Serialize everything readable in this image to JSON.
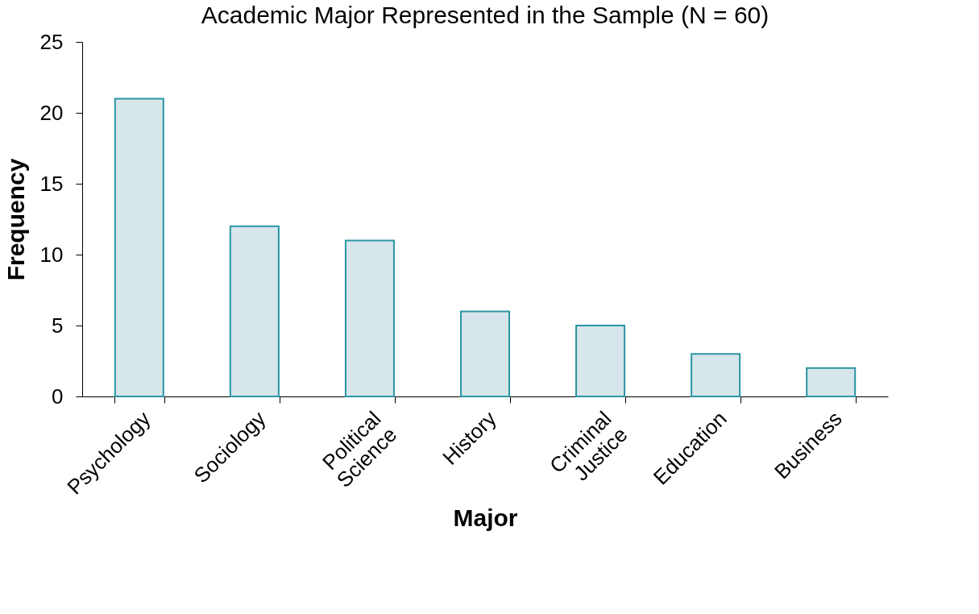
{
  "chart_data": {
    "type": "bar",
    "title": "Academic Major Represented in the Sample (N = 60)",
    "xlabel": "Major",
    "ylabel": "Frequency",
    "categories": [
      "Psychology",
      "Sociology",
      "Political Science",
      "History",
      "Criminal Justice",
      "Education",
      "Business"
    ],
    "values": [
      21,
      12,
      11,
      6,
      5,
      3,
      2
    ],
    "color": "#d7e6ea",
    "ylim": [
      0,
      25
    ],
    "yticks": [
      0,
      5,
      10,
      15,
      20,
      25
    ],
    "grid": false
  }
}
